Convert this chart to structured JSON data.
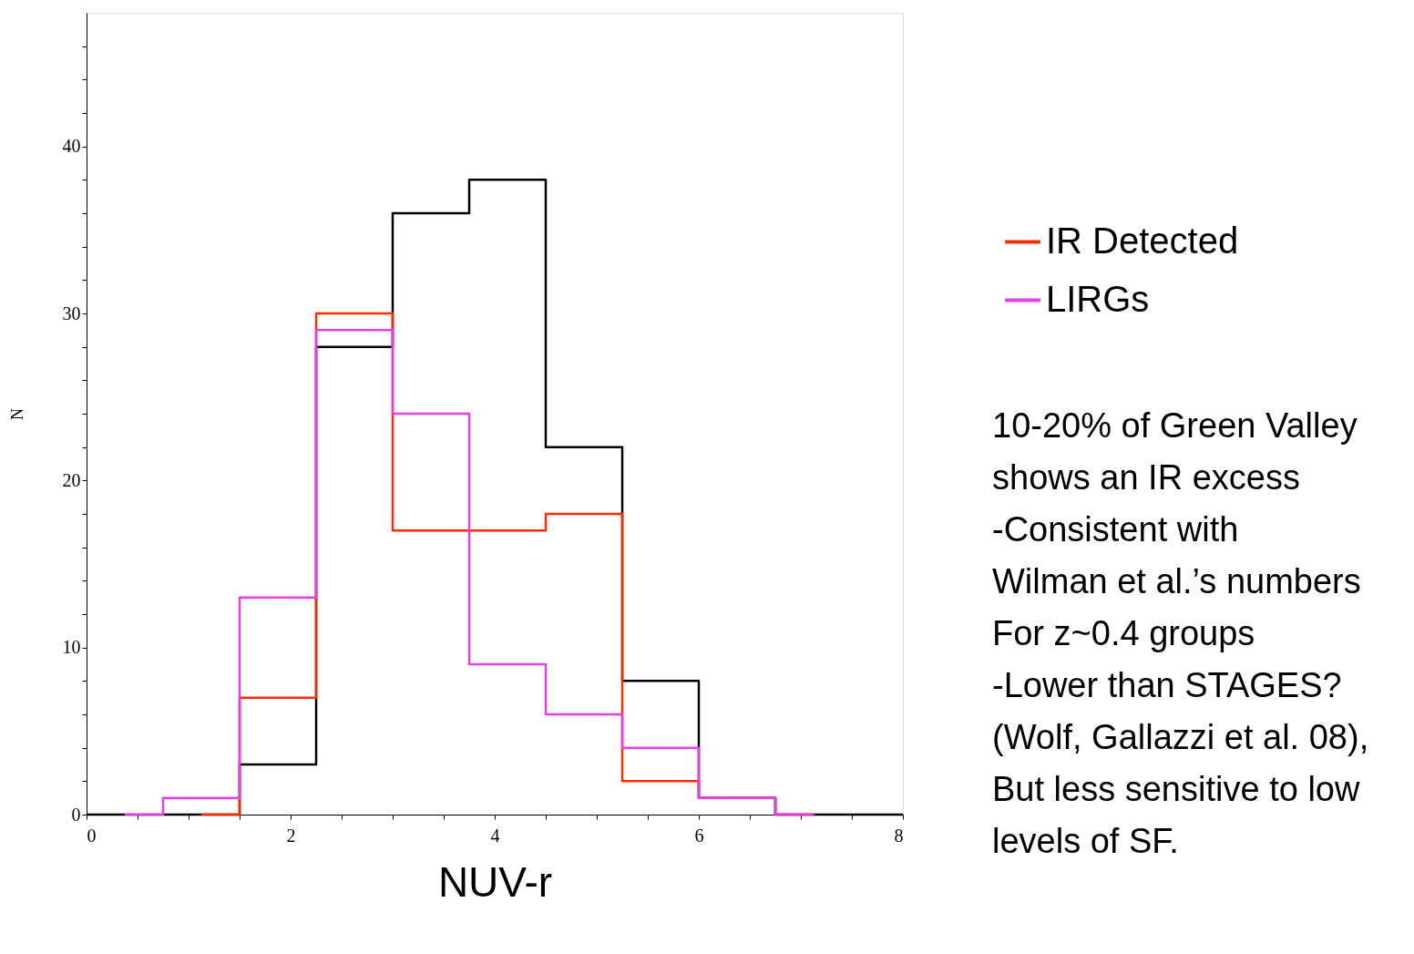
{
  "chart_data": {
    "type": "histogram",
    "xlabel": "NUV-r",
    "ylabel": "N",
    "xlim": [
      0,
      8
    ],
    "ylim": [
      0,
      48
    ],
    "xticks": [
      0,
      {
        "value": 0.5,
        "label": null
      },
      {
        "value": 1,
        "label": null
      },
      {
        "value": 1.5,
        "label": null
      },
      2,
      {
        "value": 2.5,
        "label": null
      },
      {
        "value": 3,
        "label": null
      },
      {
        "value": 3.5,
        "label": null
      },
      4,
      {
        "value": 4.5,
        "label": null
      },
      {
        "value": 5,
        "label": null
      },
      {
        "value": 5.5,
        "label": null
      },
      6,
      {
        "value": 6.5,
        "label": null
      },
      {
        "value": 7,
        "label": null
      },
      {
        "value": 7.5,
        "label": null
      },
      8
    ],
    "yticks": [
      0,
      {
        "value": 2,
        "label": null
      },
      {
        "value": 4,
        "label": null
      },
      {
        "value": 6,
        "label": null
      },
      {
        "value": 8,
        "label": null
      },
      10,
      {
        "value": 12,
        "label": null
      },
      {
        "value": 14,
        "label": null
      },
      {
        "value": 16,
        "label": null
      },
      {
        "value": 18,
        "label": null
      },
      20,
      {
        "value": 22,
        "label": null
      },
      {
        "value": 24,
        "label": null
      },
      {
        "value": 26,
        "label": null
      },
      {
        "value": 28,
        "label": null
      },
      30,
      {
        "value": 32,
        "label": null
      },
      {
        "value": 34,
        "label": null
      },
      {
        "value": 36,
        "label": null
      },
      {
        "value": 38,
        "label": null
      },
      40,
      {
        "value": 42,
        "label": null
      },
      {
        "value": 44,
        "label": null
      },
      {
        "value": 46,
        "label": null
      }
    ],
    "grid": false,
    "legend": "right",
    "bins": [
      0,
      1.5,
      2.25,
      3,
      3.75,
      4.5,
      5.25,
      6,
      6.75,
      8
    ],
    "series": [
      {
        "color": "#000000",
        "values": [
          0,
          3,
          28,
          36,
          38,
          22,
          8,
          1,
          0
        ]
      },
      {
        "name": "IR Detected",
        "color": "#ff2a00",
        "bins": [
          1.125,
          1.5,
          2.25,
          3,
          3.75,
          4.5,
          5.25,
          6,
          6.75,
          7.125
        ],
        "values": [
          0,
          7,
          30,
          17,
          17,
          18,
          2,
          1,
          0
        ]
      },
      {
        "name": "LIRGs",
        "color": "#e83de8",
        "bins": [
          0.375,
          0.75,
          1.5,
          2.25,
          3,
          3.75,
          4.5,
          5.25,
          6,
          6.75,
          7.125
        ],
        "values": [
          0,
          1,
          13,
          29,
          24,
          9,
          6,
          4,
          1,
          0
        ]
      }
    ],
    "annotations": [
      "10-20% of Green Valley",
      "shows an IR excess",
      "-Consistent with",
      "Wilman et al.’s numbers",
      "For z~0.4 groups",
      "-Lower than STAGES?",
      "(Wolf, Gallazzi et al. 08),",
      "But less sensitive to low",
      "levels of SF."
    ]
  }
}
